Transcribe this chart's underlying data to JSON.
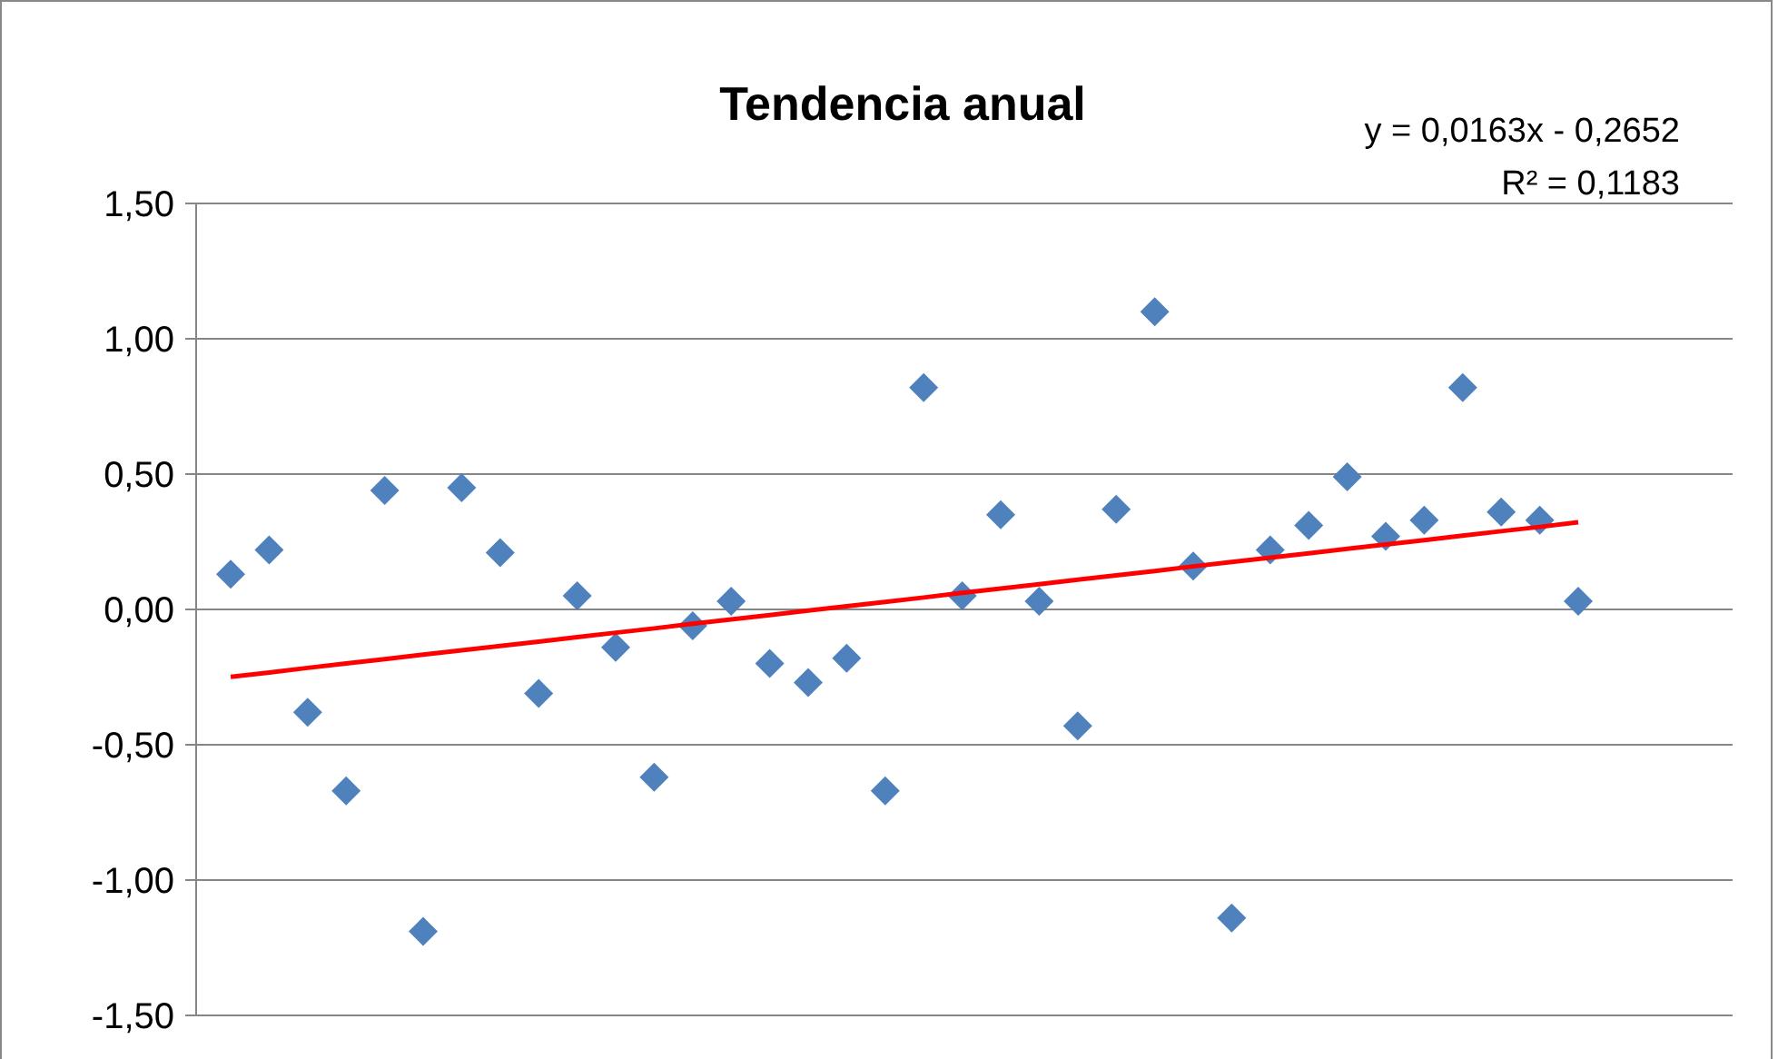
{
  "chart_data": {
    "type": "scatter",
    "title": "Tendencia anual",
    "categories": [
      null,
      null,
      null,
      null,
      null,
      null,
      null,
      null,
      null,
      null,
      null,
      null,
      null,
      null,
      null,
      null,
      null,
      null,
      null,
      null,
      null,
      null,
      null,
      null,
      null,
      null,
      null,
      null,
      null,
      null,
      null,
      null,
      null,
      null,
      null,
      null
    ],
    "ylim": [
      -1.5,
      1.5
    ],
    "yticks": [
      {
        "value": -1.5,
        "label": "-1,50"
      },
      {
        "value": -1,
        "label": "-1,00"
      },
      {
        "value": -0.5,
        "label": "-0,50"
      },
      {
        "value": 0,
        "label": "0,00"
      },
      {
        "value": 0.5,
        "label": "0,50"
      },
      {
        "value": 1,
        "label": "1,00"
      },
      {
        "value": 1.5,
        "label": "1,50"
      }
    ],
    "grid": "y",
    "series": [
      {
        "marker": "diamond",
        "color": "#4f81bd",
        "values": [
          0.13,
          0.22,
          -0.38,
          -0.67,
          0.44,
          -1.19,
          0.45,
          0.21,
          -0.31,
          0.05,
          -0.14,
          -0.62,
          -0.06,
          0.03,
          -0.2,
          -0.27,
          -0.18,
          -0.67,
          0.82,
          0.05,
          0.35,
          0.03,
          -0.43,
          0.37,
          1.1,
          0.16,
          -1.14,
          0.22,
          0.31,
          0.49,
          0.27,
          0.33,
          0.82,
          0.36,
          0.33,
          0.03
        ]
      },
      {
        "type": "line",
        "line_style": "solid",
        "color": "#ff0000",
        "values": [
          -0.249,
          -0.233,
          -0.216,
          -0.2,
          -0.184,
          -0.167,
          -0.151,
          -0.135,
          -0.119,
          -0.102,
          -0.086,
          -0.07,
          -0.053,
          -0.037,
          -0.021,
          -0.004,
          0.012,
          0.028,
          0.044,
          0.061,
          0.077,
          0.093,
          0.11,
          0.126,
          0.142,
          0.159,
          0.175,
          0.191,
          0.207,
          0.224,
          0.24,
          0.256,
          0.273,
          0.289,
          0.305,
          0.322
        ]
      }
    ],
    "annotations": [
      "y = 0,0163x - 0,2652",
      "R² = 0,1183"
    ]
  }
}
